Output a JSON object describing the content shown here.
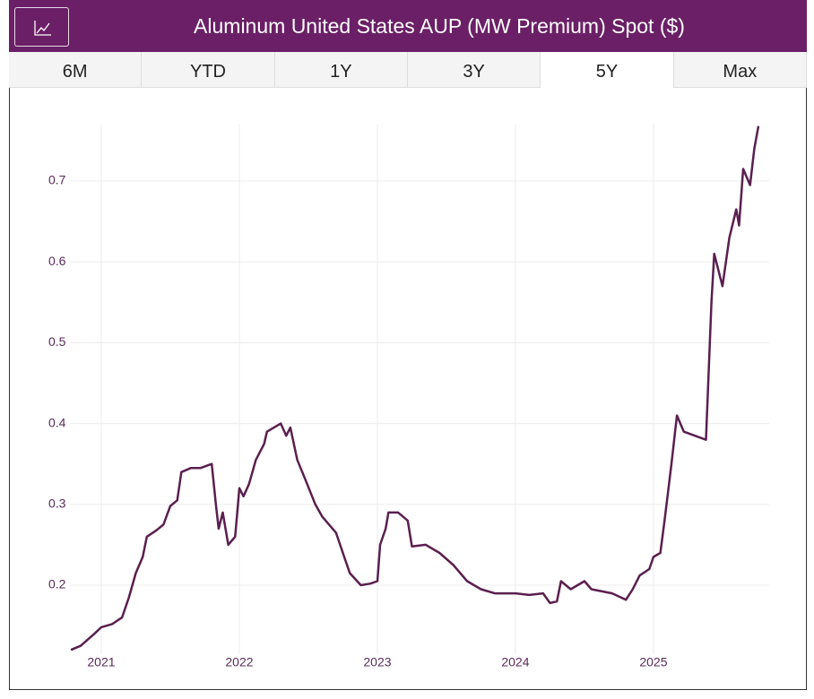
{
  "tabs": [
    "6M",
    "YTD",
    "1Y",
    "3Y",
    "5Y",
    "Max"
  ],
  "selected_tab": 4,
  "chart_data": {
    "type": "line",
    "title": "Aluminum United States AUP (MW Premium) Spot ($)",
    "x": [
      2020.78,
      2020.85,
      2020.95,
      2021.0,
      2021.08,
      2021.15,
      2021.2,
      2021.25,
      2021.3,
      2021.33,
      2021.4,
      2021.45,
      2021.5,
      2021.55,
      2021.58,
      2021.65,
      2021.72,
      2021.8,
      2021.83,
      2021.85,
      2021.88,
      2021.92,
      2021.97,
      2022.0,
      2022.03,
      2022.07,
      2022.12,
      2022.18,
      2022.2,
      2022.3,
      2022.34,
      2022.37,
      2022.42,
      2022.48,
      2022.55,
      2022.6,
      2022.7,
      2022.76,
      2022.8,
      2022.88,
      2022.95,
      2023.0,
      2023.02,
      2023.06,
      2023.08,
      2023.15,
      2023.22,
      2023.25,
      2023.35,
      2023.45,
      2023.55,
      2023.65,
      2023.75,
      2023.85,
      2024.0,
      2024.1,
      2024.2,
      2024.25,
      2024.3,
      2024.33,
      2024.4,
      2024.5,
      2024.55,
      2024.7,
      2024.8,
      2024.85,
      2024.9,
      2024.97,
      2025.0,
      2025.05,
      2025.08,
      2025.13,
      2025.17,
      2025.22,
      2025.3,
      2025.38,
      2025.42,
      2025.44,
      2025.5,
      2025.55,
      2025.6,
      2025.62,
      2025.65,
      2025.7,
      2025.73,
      2025.76
    ],
    "series": [
      {
        "name": "AUP",
        "color": "#5a1f4f",
        "values": [
          0.12,
          0.125,
          0.14,
          0.148,
          0.152,
          0.16,
          0.185,
          0.215,
          0.235,
          0.26,
          0.268,
          0.275,
          0.298,
          0.305,
          0.34,
          0.345,
          0.345,
          0.35,
          0.3,
          0.27,
          0.29,
          0.25,
          0.26,
          0.32,
          0.31,
          0.325,
          0.355,
          0.375,
          0.39,
          0.4,
          0.385,
          0.395,
          0.355,
          0.33,
          0.3,
          0.285,
          0.265,
          0.235,
          0.215,
          0.2,
          0.202,
          0.205,
          0.25,
          0.27,
          0.29,
          0.29,
          0.28,
          0.248,
          0.25,
          0.24,
          0.225,
          0.205,
          0.195,
          0.19,
          0.19,
          0.188,
          0.19,
          0.178,
          0.18,
          0.205,
          0.195,
          0.205,
          0.195,
          0.19,
          0.182,
          0.195,
          0.212,
          0.22,
          0.235,
          0.24,
          0.28,
          0.35,
          0.41,
          0.39,
          0.385,
          0.38,
          0.55,
          0.61,
          0.57,
          0.63,
          0.665,
          0.645,
          0.715,
          0.695,
          0.74,
          0.768
        ]
      }
    ],
    "xlim": [
      2020.773,
      2025.838
    ],
    "xticks": [
      2021,
      2022,
      2023,
      2024,
      2025
    ],
    "ylim": [
      0.115,
      0.77
    ],
    "yticks": [
      0.2,
      0.3,
      0.4,
      0.5,
      0.6,
      0.7
    ],
    "grid": true
  }
}
